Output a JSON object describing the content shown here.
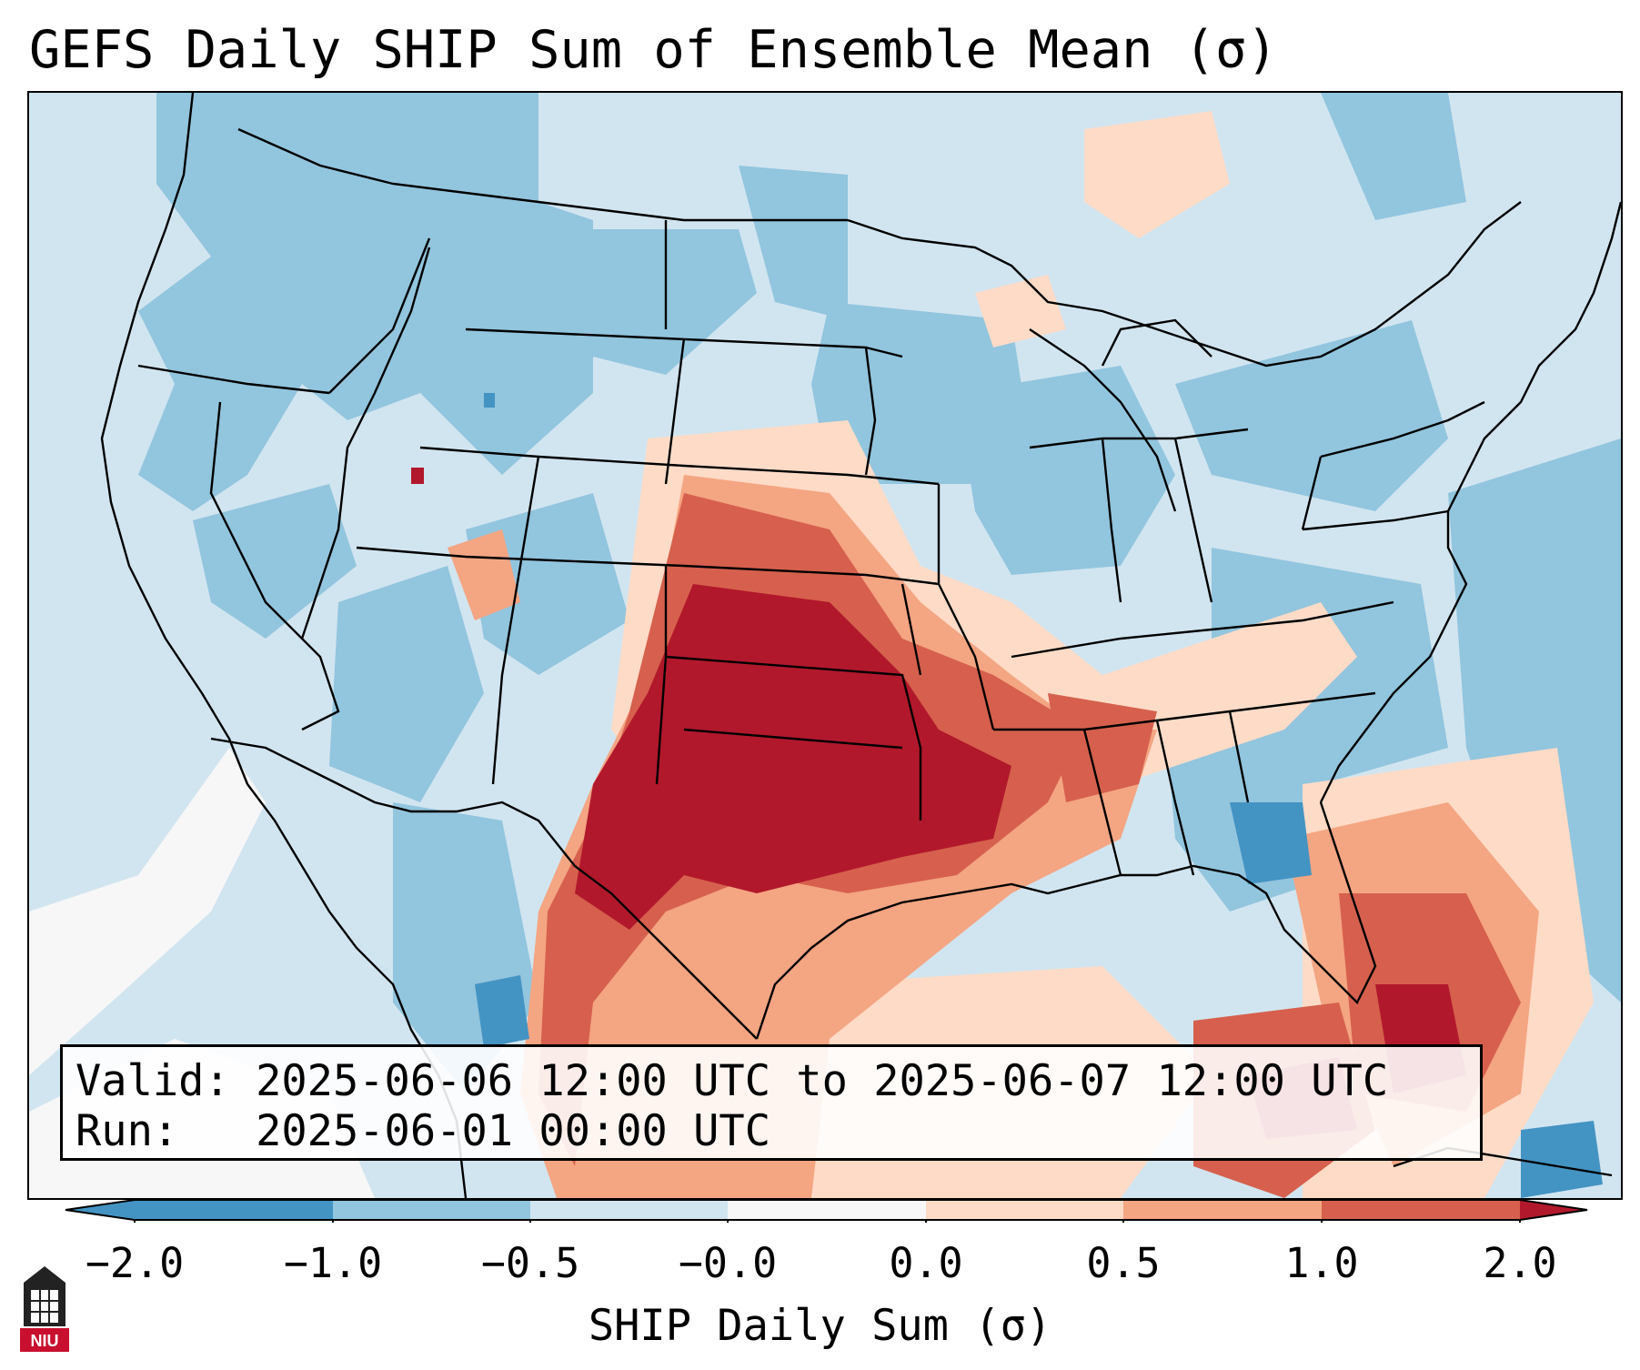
{
  "header": {
    "title": "GEFS Daily SHIP Sum of Ensemble Mean (σ)"
  },
  "info": {
    "valid_line": "Valid: 2025-06-06 12:00 UTC to 2025-06-07 12:00 UTC",
    "run_line": "Run:   2025-06-01 00:00 UTC"
  },
  "colorbar": {
    "label": "SHIP Daily Sum (σ)",
    "ticks": [
      "−2.0",
      "−1.0",
      "−0.5",
      "−0.0",
      "0.0",
      "0.5",
      "1.0",
      "2.0"
    ],
    "colors": [
      "#4393c3",
      "#92c5de",
      "#d1e5f0",
      "#f7f7f7",
      "#fddbc7",
      "#f4a582",
      "#d6604d",
      "#b2182b"
    ]
  },
  "logo": {
    "text": "NIU"
  }
}
